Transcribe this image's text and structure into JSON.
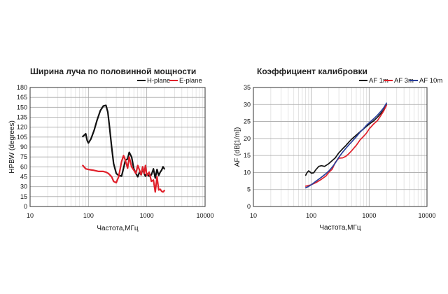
{
  "chart_data": [
    {
      "type": "line",
      "title": "Ширина луча по половинной мощности",
      "xlabel": "Частота,МГц",
      "ylabel": "HPBW (degrees)",
      "xscale": "log",
      "xlim": [
        10,
        10000
      ],
      "ylim": [
        0,
        180
      ],
      "xticks": [
        10,
        100,
        1000,
        10000
      ],
      "xtick_labels": [
        "10",
        "100",
        "1000",
        "10000"
      ],
      "yticks": [
        0,
        15,
        30,
        45,
        60,
        75,
        90,
        105,
        120,
        135,
        150,
        165,
        180
      ],
      "ytick_labels": [
        "0",
        "15",
        "30",
        "45",
        "60",
        "75",
        "90",
        "105",
        "120",
        "135",
        "150",
        "165",
        "180"
      ],
      "grid": true,
      "legend": "top-right",
      "series": [
        {
          "name": "H-plane",
          "color": "#111111",
          "x": [
            80,
            85,
            90,
            95,
            100,
            110,
            125,
            140,
            160,
            180,
            200,
            215,
            230,
            250,
            270,
            300,
            330,
            370,
            400,
            430,
            470,
            500,
            550,
            600,
            650,
            700,
            750,
            800,
            850,
            900,
            950,
            1000,
            1100,
            1200,
            1300,
            1400,
            1500,
            1600,
            1700,
            1800,
            1900,
            2000
          ],
          "y": [
            106,
            108,
            110,
            100,
            96,
            102,
            115,
            130,
            145,
            152,
            153,
            143,
            120,
            90,
            65,
            50,
            47,
            46,
            58,
            70,
            72,
            82,
            75,
            57,
            50,
            45,
            52,
            48,
            57,
            50,
            46,
            50,
            46,
            48,
            57,
            43,
            56,
            47,
            52,
            55,
            60,
            57
          ]
        },
        {
          "name": "E-plane",
          "color": "#e0202a",
          "x": [
            80,
            90,
            100,
            120,
            150,
            180,
            200,
            220,
            250,
            270,
            300,
            330,
            370,
            400,
            430,
            470,
            500,
            550,
            600,
            650,
            700,
            750,
            800,
            850,
            900,
            950,
            1000,
            1100,
            1200,
            1300,
            1400,
            1500,
            1600,
            1700,
            1800,
            1900,
            2000
          ],
          "y": [
            62,
            57,
            56,
            55,
            53,
            53,
            52,
            50,
            45,
            38,
            36,
            45,
            68,
            77,
            70,
            58,
            75,
            60,
            55,
            50,
            62,
            55,
            48,
            60,
            50,
            62,
            47,
            52,
            38,
            40,
            22,
            45,
            25,
            26,
            23,
            22,
            24
          ]
        }
      ]
    },
    {
      "type": "line",
      "title": "Коэффициент калибровки",
      "xlabel": "Частота,МГц",
      "ylabel": "AF (dB[1/m])",
      "xscale": "log",
      "xlim": [
        10,
        10000
      ],
      "ylim": [
        0,
        35
      ],
      "xticks": [
        10,
        100,
        1000,
        10000
      ],
      "xtick_labels": [
        "10",
        "100",
        "1000",
        "10000"
      ],
      "yticks": [
        0,
        5,
        10,
        15,
        20,
        25,
        30,
        35
      ],
      "ytick_labels": [
        "0",
        "5",
        "10",
        "15",
        "20",
        "25",
        "30",
        "35"
      ],
      "grid": true,
      "legend": "top-right",
      "series": [
        {
          "name": "AF 1m",
          "color": "#111111",
          "x": [
            80,
            85,
            90,
            95,
            100,
            110,
            120,
            135,
            150,
            170,
            200,
            230,
            260,
            300,
            350,
            400,
            450,
            500,
            600,
            700,
            800,
            900,
            1000,
            1200,
            1400,
            1600,
            1800,
            2000
          ],
          "y": [
            9.2,
            10.0,
            10.5,
            10.2,
            9.8,
            9.9,
            10.8,
            11.8,
            12.0,
            11.8,
            12.6,
            13.5,
            14.3,
            15.8,
            17.0,
            18.0,
            19.0,
            19.8,
            21.0,
            22.0,
            22.8,
            23.6,
            24.2,
            25.2,
            26.3,
            27.4,
            28.5,
            29.9
          ]
        },
        {
          "name": "AF 3m",
          "color": "#e0202a",
          "x": [
            80,
            90,
            100,
            120,
            150,
            180,
            200,
            230,
            260,
            300,
            350,
            400,
            450,
            500,
            600,
            700,
            800,
            900,
            1000,
            1200,
            1400,
            1600,
            1800,
            2000
          ],
          "y": [
            6.0,
            6.2,
            6.4,
            7.0,
            8.0,
            9.0,
            10.0,
            11.0,
            13.0,
            14.2,
            14.3,
            14.8,
            15.6,
            16.4,
            18.0,
            19.6,
            20.6,
            21.6,
            22.8,
            24.3,
            25.3,
            26.8,
            28.2,
            29.8
          ]
        },
        {
          "name": "AF 10m",
          "color": "#2a3f9a",
          "x": [
            80,
            90,
            100,
            120,
            150,
            180,
            200,
            230,
            260,
            300,
            350,
            400,
            450,
            500,
            600,
            700,
            800,
            900,
            1000,
            1200,
            1400,
            1600,
            1800,
            2000
          ],
          "y": [
            5.5,
            5.9,
            6.4,
            7.4,
            8.6,
            9.7,
            10.4,
            11.6,
            12.8,
            14.5,
            16.0,
            17.2,
            18.2,
            19.0,
            20.5,
            21.9,
            22.9,
            23.9,
            24.6,
            25.8,
            26.9,
            28.0,
            29.1,
            30.4
          ]
        }
      ]
    }
  ]
}
